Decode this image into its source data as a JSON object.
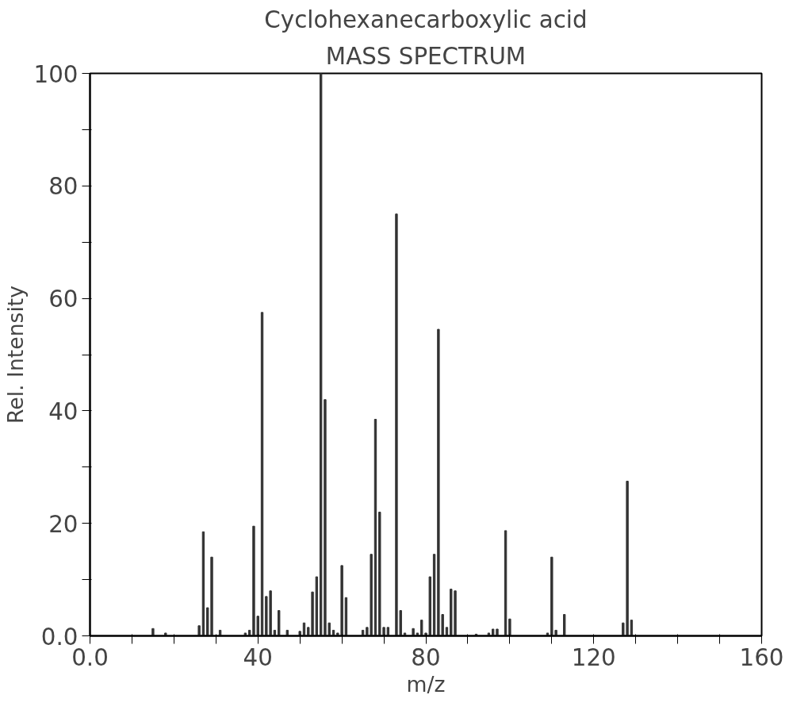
{
  "chart_data": {
    "type": "bar",
    "title": "Cyclohexanecarboxylic acid",
    "subtitle": "MASS SPECTRUM",
    "xlabel": "m/z",
    "ylabel": "Rel. Intensity",
    "x": [
      15,
      18,
      26,
      27,
      28,
      29,
      31,
      37,
      38,
      39,
      40,
      41,
      42,
      43,
      44,
      45,
      47,
      50,
      51,
      52,
      53,
      54,
      55,
      56,
      57,
      58,
      59,
      60,
      61,
      65,
      66,
      67,
      68,
      69,
      70,
      71,
      73,
      74,
      75,
      77,
      78,
      79,
      80,
      81,
      82,
      83,
      84,
      85,
      86,
      87,
      92,
      95,
      96,
      97,
      99,
      100,
      109,
      110,
      111,
      113,
      127,
      128,
      129
    ],
    "values": [
      1.3,
      0.5,
      1.8,
      18.5,
      5,
      14,
      1,
      0.5,
      1,
      19.5,
      3.5,
      57.5,
      7,
      8,
      1,
      4.5,
      1,
      0.8,
      2.3,
      1.5,
      7.8,
      10.5,
      100,
      42,
      2.3,
      1,
      0.5,
      12.5,
      6.8,
      1,
      1.5,
      14.5,
      38.5,
      22,
      1.5,
      1.5,
      75,
      4.5,
      0.5,
      1.3,
      0.5,
      2.8,
      0.5,
      10.5,
      14.5,
      54.5,
      3.8,
      1.5,
      8.3,
      8,
      0.3,
      0.5,
      1.2,
      1.2,
      18.7,
      3,
      0.5,
      14,
      1,
      3.8,
      2.3,
      27.5,
      2.8
    ],
    "color": "#333333",
    "xlim": [
      0,
      160
    ],
    "xticks": [
      {
        "value": 0,
        "label": "0.0"
      },
      {
        "value": 10,
        "label": null
      },
      {
        "value": 20,
        "label": null
      },
      {
        "value": 30,
        "label": null
      },
      40,
      {
        "value": 50,
        "label": null
      },
      {
        "value": 60,
        "label": null
      },
      {
        "value": 70,
        "label": null
      },
      80,
      {
        "value": 90,
        "label": null
      },
      {
        "value": 100,
        "label": null
      },
      {
        "value": 110,
        "label": null
      },
      120,
      {
        "value": 130,
        "label": null
      },
      {
        "value": 140,
        "label": null
      },
      {
        "value": 150,
        "label": null
      },
      160
    ],
    "ylim": [
      0,
      100
    ],
    "yticks": [
      {
        "value": 0,
        "label": "0.0"
      },
      {
        "value": 10,
        "label": null
      },
      20,
      {
        "value": 30,
        "label": null
      },
      40,
      {
        "value": 50,
        "label": null
      },
      60,
      {
        "value": 70,
        "label": null
      },
      80,
      {
        "value": 90,
        "label": null
      },
      100
    ],
    "grid": false
  }
}
